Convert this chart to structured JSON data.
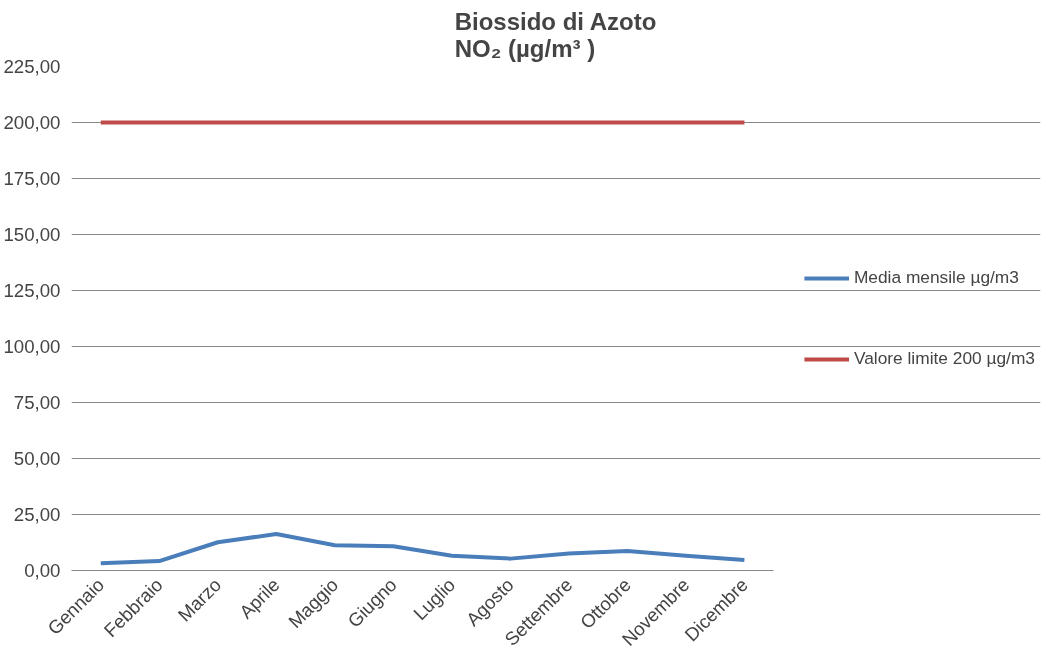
{
  "chart_data": {
    "type": "line",
    "title": "Biossido di Azoto\nNO₂ (µg/m³ )",
    "categories": [
      "Gennaio",
      "Febbraio",
      "Marzo",
      "Aprile",
      "Maggio",
      "Giugno",
      "Luglio",
      "Agosto",
      "Settembre",
      "Ottobre",
      "Novembre",
      "Dicembre"
    ],
    "series": [
      {
        "name": "Media mensile µg/m3",
        "color": "#4a7ebb",
        "values": [
          3.2,
          4.2,
          12.6,
          16.3,
          11.3,
          10.8,
          6.6,
          5.3,
          7.6,
          8.7,
          6.6,
          4.7
        ]
      },
      {
        "name": "Valore limite 200 µg/m3",
        "color": "#be4b48",
        "values": [
          200,
          200,
          200,
          200,
          200,
          200,
          200,
          200,
          200,
          200,
          200,
          200
        ]
      }
    ],
    "ylim": [
      0,
      225
    ],
    "yticks": [
      {
        "value": 0,
        "label": "0,00"
      },
      {
        "value": 25,
        "label": "25,00"
      },
      {
        "value": 50,
        "label": "50,00"
      },
      {
        "value": 75,
        "label": "75,00"
      },
      {
        "value": 100,
        "label": "100,00"
      },
      {
        "value": 125,
        "label": "125,00"
      },
      {
        "value": 150,
        "label": "150,00"
      },
      {
        "value": 175,
        "label": "175,00"
      },
      {
        "value": 200,
        "label": "200,00"
      },
      {
        "value": 225,
        "label": "225,00"
      }
    ],
    "grid": "y",
    "legend": "right",
    "marker": "none",
    "line_style": "solid"
  }
}
